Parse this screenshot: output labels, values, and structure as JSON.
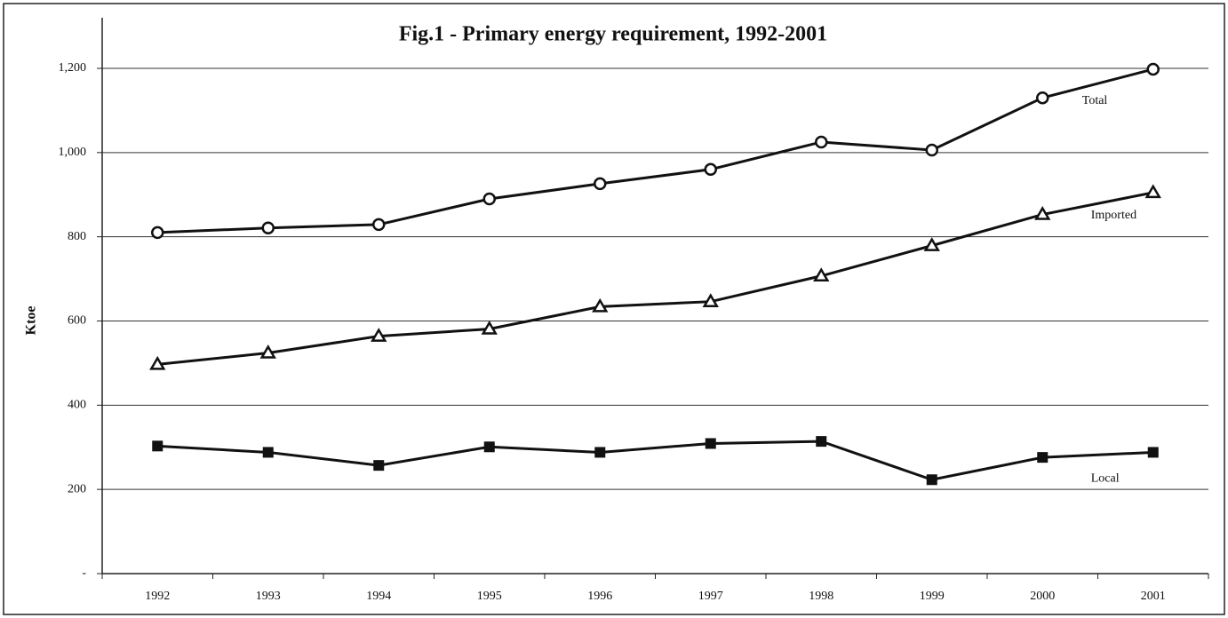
{
  "chart_data": {
    "type": "line",
    "title": "Fig.1 - Primary energy requirement, 1992-2001",
    "ylabel": "Ktoe",
    "categories": [
      "1992",
      "1993",
      "1994",
      "1995",
      "1996",
      "1997",
      "1998",
      "1999",
      "2000",
      "2001"
    ],
    "series": [
      {
        "name": "Total",
        "color": "#111111",
        "marker": "circle",
        "values": [
          810,
          821,
          829,
          890,
          926,
          960,
          1025,
          1006,
          1130,
          1198
        ]
      },
      {
        "name": "Imported",
        "color": "#111111",
        "marker": "triangle",
        "values": [
          497,
          524,
          564,
          581,
          634,
          646,
          707,
          779,
          853,
          905
        ]
      },
      {
        "name": "Local",
        "color": "#111111",
        "marker": "square",
        "values": [
          303,
          288,
          257,
          301,
          288,
          309,
          314,
          223,
          276,
          288
        ]
      }
    ],
    "ylim": [
      0,
      1200
    ],
    "yticks": [
      {
        "value": 0,
        "label": "-"
      },
      200,
      400,
      600,
      800,
      {
        "value": 1000,
        "label": "1,000"
      },
      {
        "value": 1200,
        "label": "1,200"
      }
    ],
    "grid": true
  }
}
